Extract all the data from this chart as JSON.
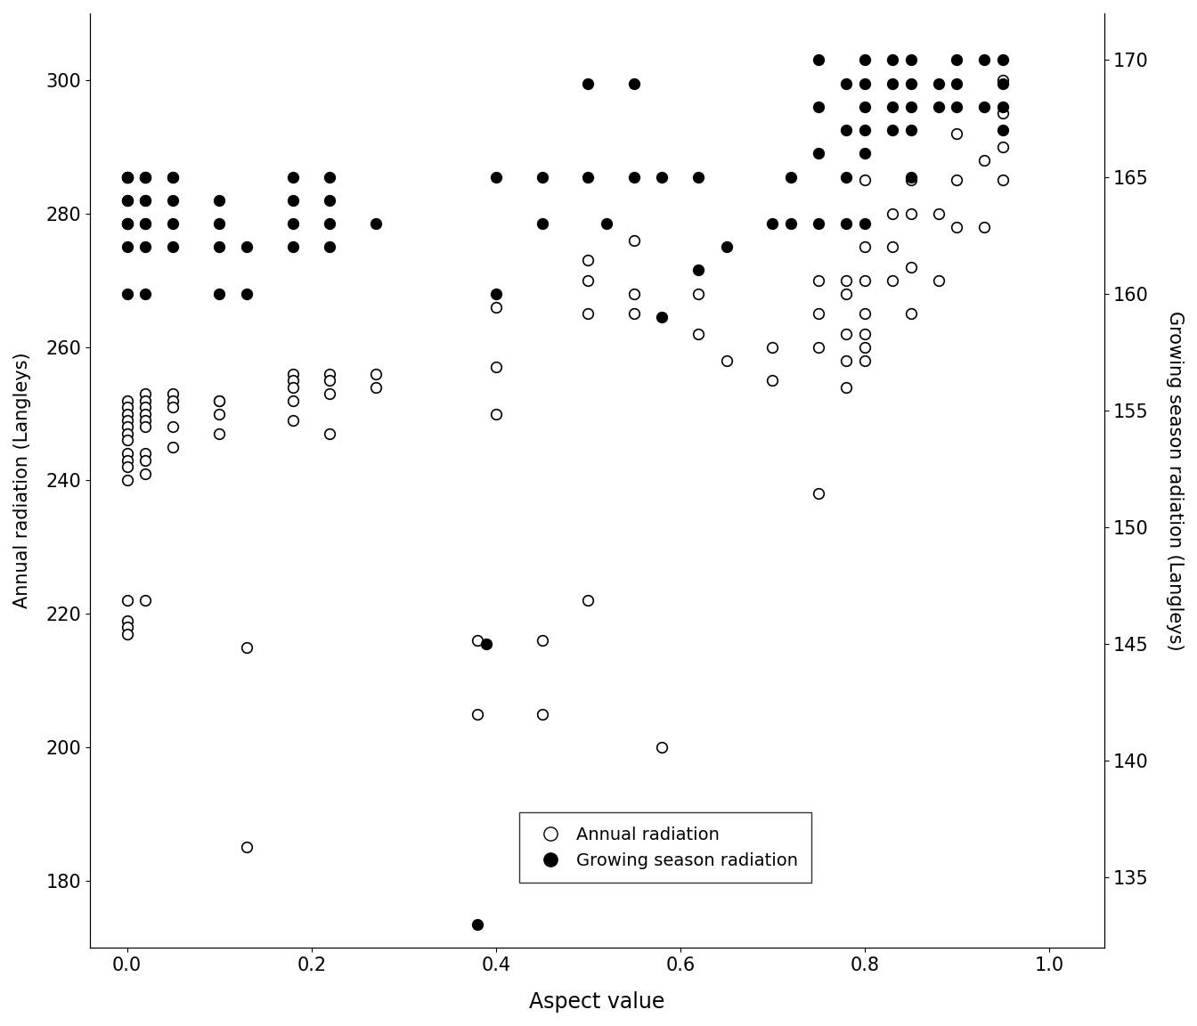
{
  "aspect_annual": [
    0.0,
    0.0,
    0.0,
    0.0,
    0.0,
    0.0,
    0.0,
    0.0,
    0.0,
    0.0,
    0.0,
    0.0,
    0.0,
    0.0,
    0.0,
    0.02,
    0.02,
    0.02,
    0.02,
    0.02,
    0.02,
    0.02,
    0.02,
    0.02,
    0.02,
    0.05,
    0.05,
    0.05,
    0.05,
    0.05,
    0.1,
    0.1,
    0.1,
    0.1,
    0.13,
    0.13,
    0.18,
    0.18,
    0.18,
    0.18,
    0.18,
    0.22,
    0.22,
    0.22,
    0.22,
    0.27,
    0.27,
    0.38,
    0.38,
    0.4,
    0.4,
    0.4,
    0.45,
    0.45,
    0.5,
    0.5,
    0.5,
    0.5,
    0.55,
    0.55,
    0.55,
    0.58,
    0.62,
    0.62,
    0.65,
    0.7,
    0.7,
    0.75,
    0.75,
    0.75,
    0.75,
    0.78,
    0.78,
    0.78,
    0.78,
    0.78,
    0.8,
    0.8,
    0.8,
    0.8,
    0.8,
    0.8,
    0.8,
    0.83,
    0.83,
    0.83,
    0.85,
    0.85,
    0.85,
    0.85,
    0.88,
    0.88,
    0.9,
    0.9,
    0.9,
    0.93,
    0.93,
    0.95,
    0.95,
    0.95,
    0.95
  ],
  "annual_radiation": [
    252,
    251,
    250,
    249,
    248,
    247,
    246,
    244,
    243,
    242,
    240,
    222,
    219,
    218,
    217,
    253,
    252,
    251,
    250,
    249,
    248,
    244,
    243,
    241,
    222,
    253,
    252,
    251,
    248,
    245,
    252,
    252,
    250,
    247,
    215,
    185,
    256,
    255,
    254,
    252,
    249,
    256,
    255,
    253,
    247,
    256,
    254,
    216,
    205,
    266,
    257,
    250,
    216,
    205,
    273,
    270,
    265,
    222,
    276,
    268,
    265,
    200,
    268,
    262,
    258,
    260,
    255,
    270,
    265,
    260,
    238,
    270,
    268,
    262,
    258,
    254,
    285,
    275,
    270,
    265,
    262,
    260,
    258,
    280,
    275,
    270,
    285,
    280,
    272,
    265,
    280,
    270,
    292,
    285,
    278,
    288,
    278,
    300,
    295,
    290,
    285
  ],
  "aspect_growing": [
    0.0,
    0.0,
    0.0,
    0.0,
    0.0,
    0.0,
    0.0,
    0.0,
    0.0,
    0.0,
    0.0,
    0.02,
    0.02,
    0.02,
    0.02,
    0.02,
    0.02,
    0.02,
    0.02,
    0.02,
    0.05,
    0.05,
    0.05,
    0.05,
    0.05,
    0.1,
    0.1,
    0.1,
    0.1,
    0.13,
    0.13,
    0.18,
    0.18,
    0.18,
    0.18,
    0.22,
    0.22,
    0.22,
    0.22,
    0.27,
    0.38,
    0.39,
    0.4,
    0.4,
    0.45,
    0.45,
    0.5,
    0.5,
    0.52,
    0.55,
    0.55,
    0.58,
    0.58,
    0.62,
    0.62,
    0.65,
    0.7,
    0.72,
    0.72,
    0.75,
    0.75,
    0.75,
    0.75,
    0.78,
    0.78,
    0.78,
    0.78,
    0.8,
    0.8,
    0.8,
    0.8,
    0.8,
    0.8,
    0.83,
    0.83,
    0.83,
    0.83,
    0.85,
    0.85,
    0.85,
    0.85,
    0.85,
    0.88,
    0.88,
    0.9,
    0.9,
    0.9,
    0.93,
    0.93,
    0.95,
    0.95,
    0.95,
    0.95
  ],
  "growing_radiation": [
    165,
    165,
    165,
    165,
    164,
    164,
    163,
    163,
    163,
    162,
    160,
    165,
    165,
    165,
    164,
    164,
    163,
    163,
    162,
    160,
    165,
    165,
    164,
    163,
    162,
    164,
    163,
    162,
    160,
    162,
    160,
    165,
    164,
    163,
    162,
    165,
    164,
    163,
    162,
    163,
    133,
    145,
    165,
    160,
    165,
    163,
    169,
    165,
    163,
    169,
    165,
    165,
    159,
    165,
    161,
    162,
    163,
    165,
    163,
    170,
    168,
    166,
    163,
    169,
    167,
    165,
    163,
    170,
    169,
    168,
    167,
    166,
    163,
    170,
    169,
    168,
    167,
    170,
    169,
    168,
    167,
    165,
    169,
    168,
    170,
    169,
    168,
    170,
    168,
    170,
    169,
    168,
    167
  ],
  "xlabel": "Aspect value",
  "ylabel_left": "Annual radiation (Langleys)",
  "ylabel_right": "Growing season radiation (Langleys)",
  "xlim": [
    -0.04,
    1.06
  ],
  "ylim_left": [
    170,
    310
  ],
  "ylim_right": [
    132,
    172
  ],
  "yticks_left": [
    180,
    200,
    220,
    240,
    260,
    280,
    300
  ],
  "yticks_right": [
    135,
    140,
    145,
    150,
    155,
    160,
    165,
    170
  ],
  "xticks": [
    0.0,
    0.2,
    0.4,
    0.6,
    0.8,
    1.0
  ],
  "legend_labels": [
    "Annual radiation",
    "Growing season radiation"
  ],
  "bg_color": "#ffffff",
  "open_color": "white",
  "open_edgecolor": "black",
  "filled_color": "black"
}
